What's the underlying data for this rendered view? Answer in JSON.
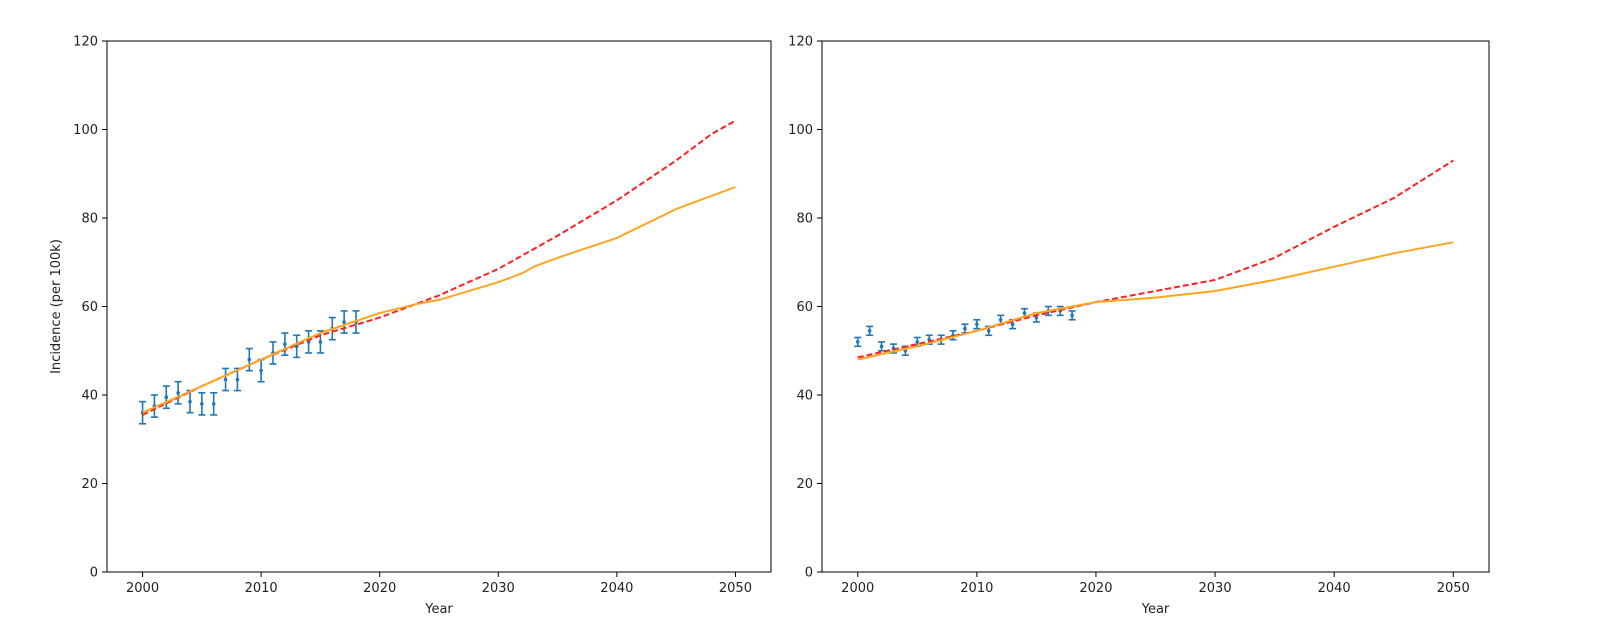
{
  "chart_data": [
    {
      "type": "line",
      "title": "",
      "xlabel": "Year",
      "ylabel": "Incidence (per 100k)",
      "xlim": [
        1997,
        2053
      ],
      "ylim": [
        0,
        120
      ],
      "xticks": [
        2000,
        2010,
        2020,
        2030,
        2040,
        2050
      ],
      "yticks": [
        0,
        20,
        40,
        60,
        80,
        100,
        120
      ],
      "grid": false,
      "series": [
        {
          "style": "errorbar",
          "color": "#1f77b4",
          "x": [
            2000,
            2001,
            2002,
            2003,
            2004,
            2005,
            2006,
            2007,
            2008,
            2009,
            2010,
            2011,
            2012,
            2013,
            2014,
            2015,
            2016,
            2017,
            2018
          ],
          "y": [
            36,
            37.5,
            39.5,
            40.5,
            38.5,
            38,
            38,
            43.5,
            43.5,
            48,
            45.5,
            49.5,
            51.5,
            51,
            52,
            52,
            55,
            56.5,
            56.5
          ],
          "yerr": [
            2.5,
            2.5,
            2.5,
            2.5,
            2.5,
            2.5,
            2.5,
            2.5,
            2.5,
            2.5,
            2.5,
            2.5,
            2.5,
            2.5,
            2.5,
            2.5,
            2.5,
            2.5,
            2.5
          ]
        },
        {
          "style": "dashed",
          "color": "#ff2020",
          "x": [
            2000,
            2005,
            2010,
            2015,
            2020,
            2025,
            2030,
            2035,
            2040,
            2045,
            2048,
            2050
          ],
          "y": [
            35.5,
            42,
            48,
            53.5,
            57.5,
            62.5,
            68.5,
            76,
            84,
            93,
            99,
            102
          ]
        },
        {
          "style": "solid",
          "color": "#ffa520",
          "x": [
            2000,
            2005,
            2010,
            2015,
            2020,
            2023,
            2025,
            2030,
            2032,
            2033,
            2035,
            2040,
            2045,
            2050
          ],
          "y": [
            36,
            42,
            48,
            54,
            58.5,
            60.5,
            61.5,
            65.5,
            67.5,
            69,
            71,
            75.5,
            82,
            87
          ]
        }
      ]
    },
    {
      "type": "line",
      "title": "",
      "xlabel": "Year",
      "ylabel": "",
      "xlim": [
        1997,
        2053
      ],
      "ylim": [
        0,
        120
      ],
      "xticks": [
        2000,
        2010,
        2020,
        2030,
        2040,
        2050
      ],
      "yticks": [
        0,
        20,
        40,
        60,
        80,
        100,
        120
      ],
      "grid": false,
      "series": [
        {
          "style": "errorbar",
          "color": "#1f77b4",
          "x": [
            2000,
            2001,
            2002,
            2003,
            2004,
            2005,
            2006,
            2007,
            2008,
            2009,
            2010,
            2011,
            2012,
            2013,
            2014,
            2015,
            2016,
            2017,
            2018
          ],
          "y": [
            52,
            54.5,
            51,
            50.5,
            50,
            52,
            52.5,
            52.5,
            53.5,
            55,
            56,
            54.5,
            57,
            56,
            58.5,
            57.5,
            59,
            59,
            58
          ],
          "yerr": [
            1,
            1,
            1,
            1,
            1,
            1,
            1,
            1,
            1,
            1,
            1,
            1,
            1,
            1,
            1,
            1,
            1,
            1,
            1
          ]
        },
        {
          "style": "dashed",
          "color": "#ff2020",
          "x": [
            2000,
            2005,
            2010,
            2015,
            2020,
            2025,
            2030,
            2035,
            2040,
            2045,
            2050
          ],
          "y": [
            48.5,
            51.5,
            54.5,
            58,
            61,
            63.5,
            66,
            71,
            78,
            84.5,
            93
          ]
        },
        {
          "style": "solid",
          "color": "#ffa520",
          "x": [
            2000,
            2005,
            2010,
            2015,
            2020,
            2025,
            2030,
            2035,
            2040,
            2045,
            2050
          ],
          "y": [
            48,
            51,
            54.5,
            58.5,
            61,
            62,
            63.5,
            66,
            69,
            72,
            74.5
          ]
        }
      ]
    }
  ]
}
